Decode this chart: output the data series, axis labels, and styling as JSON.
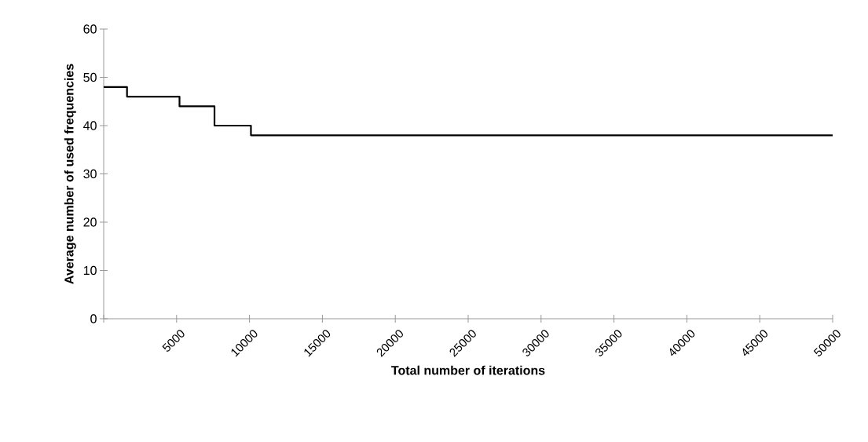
{
  "chart_data": {
    "type": "step",
    "xlabel": "Total number of iterations",
    "ylabel": "Average number of used frequencies",
    "x": [
      0,
      1600,
      5200,
      7600,
      10100,
      50000
    ],
    "series": [
      {
        "color": "#000000",
        "values": [
          48,
          46,
          44,
          40,
          38,
          38
        ]
      }
    ],
    "xlim": [
      0,
      50000
    ],
    "xticks": [
      {
        "value": 0,
        "label": null
      },
      5000,
      10000,
      15000,
      20000,
      25000,
      30000,
      35000,
      40000,
      45000,
      50000
    ],
    "ylim": [
      0,
      60
    ],
    "yticks": [
      0,
      10,
      20,
      30,
      40,
      50,
      60
    ],
    "grid": false,
    "marker": "none",
    "line_style": "solid"
  }
}
